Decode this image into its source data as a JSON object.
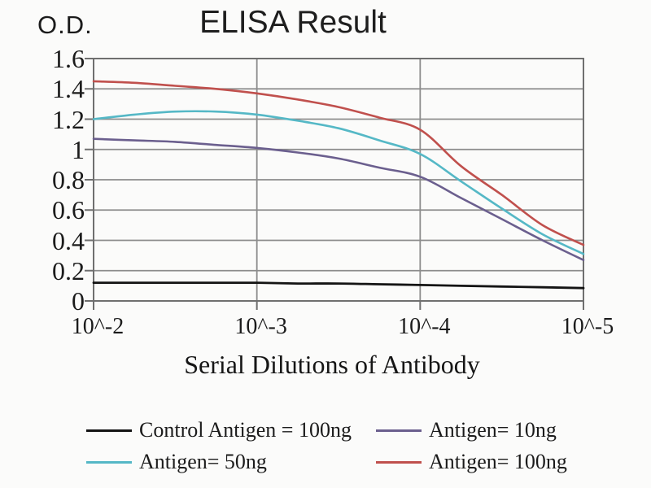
{
  "figure": {
    "od_label": "O.D.",
    "title": "ELISA Result",
    "x_axis_title": "Serial Dilutions of Antibody"
  },
  "chart_data": {
    "type": "line",
    "title": "ELISA Result",
    "ylabel": "O.D.",
    "xlabel": "Serial Dilutions of Antibody",
    "ylim": [
      0,
      1.6
    ],
    "grid": true,
    "legend_position": "bottom",
    "legend_columns": 2,
    "x_tick_labels": [
      "10^-2",
      "10^-3",
      "10^-4",
      "10^-5"
    ],
    "y_tick_labels_top_to_bottom": [
      "1.6",
      "1.4",
      "1.2",
      "1",
      "0.8",
      "0.6",
      "0.4",
      "0.2",
      "0"
    ],
    "x_log10": [
      -2,
      -2.25,
      -2.5,
      -2.75,
      -3,
      -3.25,
      -3.5,
      -3.75,
      -4,
      -4.25,
      -4.5,
      -4.75,
      -5
    ],
    "series": [
      {
        "name": "Control Antigen = 100ng",
        "color": "#141414",
        "values": [
          0.12,
          0.12,
          0.12,
          0.12,
          0.12,
          0.115,
          0.115,
          0.11,
          0.105,
          0.1,
          0.095,
          0.09,
          0.085
        ]
      },
      {
        "name": "Antigen= 10ng",
        "color": "#6b5f8e",
        "values": [
          1.07,
          1.06,
          1.05,
          1.03,
          1.01,
          0.98,
          0.94,
          0.88,
          0.82,
          0.68,
          0.54,
          0.4,
          0.27
        ]
      },
      {
        "name": "Antigen= 50ng",
        "color": "#55b8c6",
        "values": [
          1.2,
          1.23,
          1.25,
          1.25,
          1.23,
          1.19,
          1.14,
          1.06,
          0.97,
          0.79,
          0.61,
          0.44,
          0.31
        ]
      },
      {
        "name": "Antigen= 100ng",
        "color": "#c0504d",
        "values": [
          1.45,
          1.44,
          1.42,
          1.4,
          1.37,
          1.33,
          1.28,
          1.21,
          1.13,
          0.89,
          0.7,
          0.5,
          0.37
        ]
      }
    ],
    "style": {
      "grid_color": "#8c8c8c",
      "axis_border_color": "#6f6f6f",
      "background": "#fbfbfa",
      "text_color": "#1b1b1b"
    }
  }
}
